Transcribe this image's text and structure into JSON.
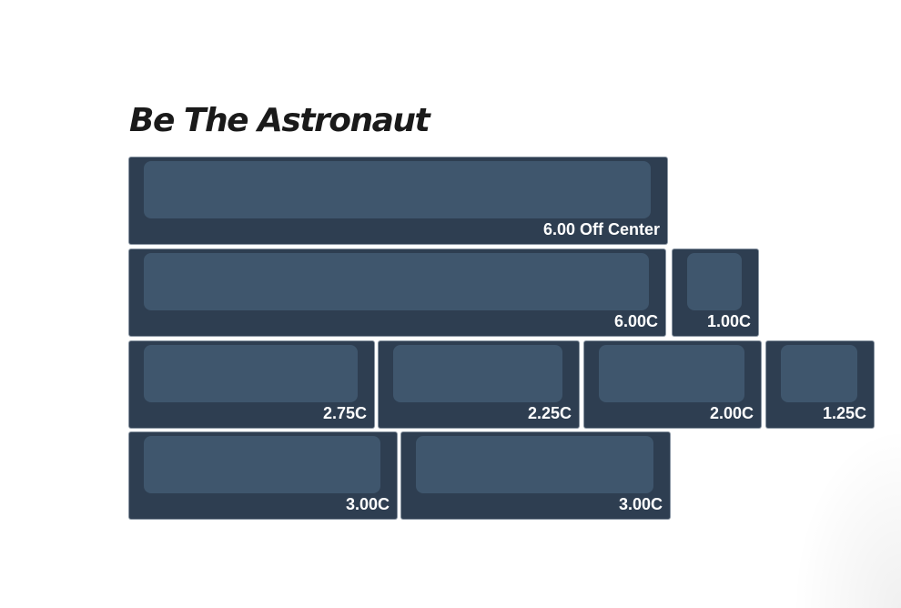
{
  "title": "Be The Astronaut",
  "colors": {
    "key_base": "#2e3e51",
    "key_top": "#3f566d",
    "label": "#ffffff"
  },
  "rows": [
    {
      "keys": [
        {
          "label": "6.00 Off Center"
        }
      ]
    },
    {
      "keys": [
        {
          "label": "6.00C"
        },
        {
          "label": "1.00C"
        }
      ]
    },
    {
      "keys": [
        {
          "label": "2.75C"
        },
        {
          "label": "2.25C"
        },
        {
          "label": "2.00C"
        },
        {
          "label": "1.25C"
        }
      ]
    },
    {
      "keys": [
        {
          "label": "3.00C"
        },
        {
          "label": "3.00C"
        }
      ]
    }
  ]
}
